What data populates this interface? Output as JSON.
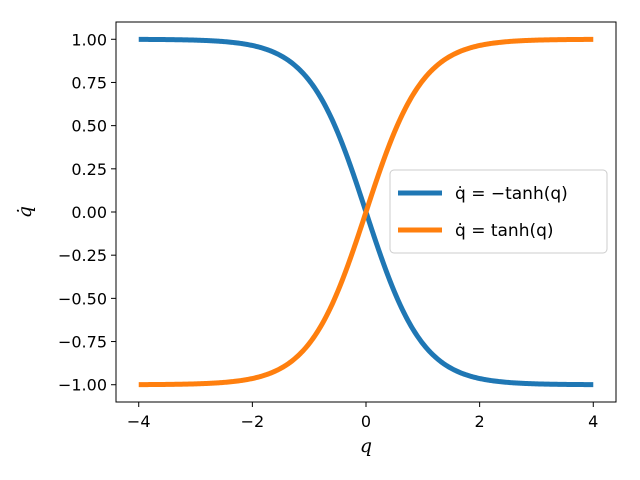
{
  "chart_data": {
    "type": "line",
    "title": "",
    "xlabel": "q",
    "ylabel": "q̇",
    "xlim": [
      -4.4,
      4.4
    ],
    "ylim": [
      -1.1,
      1.1
    ],
    "x_ticks": [
      -4,
      -2,
      0,
      2,
      4
    ],
    "x_tick_labels": [
      "−4",
      "−2",
      "0",
      "2",
      "4"
    ],
    "y_ticks": [
      1.0,
      0.75,
      0.5,
      0.25,
      0.0,
      -0.25,
      -0.5,
      -0.75,
      -1.0
    ],
    "y_tick_labels": [
      "1.00",
      "0.75",
      "0.50",
      "0.25",
      "0.00",
      "−0.25",
      "−0.50",
      "−0.75",
      "−1.00"
    ],
    "grid": false,
    "legend_position": "center-right",
    "x": [
      -4,
      -3.5,
      -3,
      -2.5,
      -2,
      -1.5,
      -1,
      -0.75,
      -0.5,
      -0.25,
      0,
      0.25,
      0.5,
      0.75,
      1,
      1.5,
      2,
      2.5,
      3,
      3.5,
      4
    ],
    "series": [
      {
        "name": "q̇ = −tanh(q)",
        "color": "#1f77b4",
        "values": [
          0.9993,
          0.9982,
          0.9951,
          0.9866,
          0.964,
          0.9051,
          0.7616,
          0.6351,
          0.4621,
          0.2449,
          0,
          -0.2449,
          -0.4621,
          -0.6351,
          -0.7616,
          -0.9051,
          -0.964,
          -0.9866,
          -0.9951,
          -0.9982,
          -0.9993
        ]
      },
      {
        "name": "q̇ = tanh(q)",
        "color": "#ff7f0e",
        "values": [
          -0.9993,
          -0.9982,
          -0.9951,
          -0.9866,
          -0.964,
          -0.9051,
          -0.7616,
          -0.6351,
          -0.4621,
          -0.2449,
          0,
          0.2449,
          0.4621,
          0.6351,
          0.7616,
          0.9051,
          0.964,
          0.9866,
          0.9951,
          0.9982,
          0.9993
        ]
      }
    ]
  }
}
